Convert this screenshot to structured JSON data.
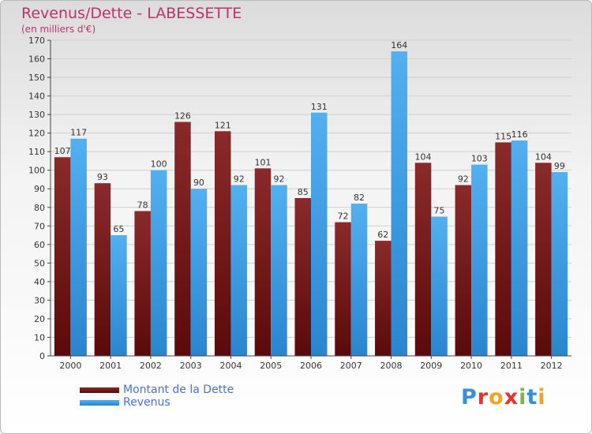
{
  "title": "Revenus/Dette - LABESSETTE",
  "subtitle": "(en milliers d'€)",
  "logo": {
    "letters": [
      "P",
      "r",
      "o",
      "x",
      "i",
      "t",
      "i"
    ],
    "colors": [
      "#3a8fd8",
      "#e8332a",
      "#f7a21b",
      "#e8332a",
      "#7ab648",
      "#3a8fd8",
      "#f7a21b"
    ]
  },
  "chart_data": {
    "type": "bar",
    "title": "Revenus/Dette - LABESSETTE",
    "subtitle": "(en milliers d'€)",
    "categories": [
      "2000",
      "2001",
      "2002",
      "2003",
      "2004",
      "2005",
      "2006",
      "2007",
      "2008",
      "2009",
      "2010",
      "2011",
      "2012"
    ],
    "series": [
      {
        "name": "Montant de la Dette",
        "color": "#7b1c1c",
        "values": [
          107,
          93,
          78,
          126,
          121,
          101,
          85,
          72,
          62,
          104,
          92,
          115,
          104
        ]
      },
      {
        "name": "Revenus",
        "color": "#3fa0e6",
        "values": [
          117,
          65,
          100,
          90,
          92,
          92,
          131,
          82,
          164,
          75,
          103,
          116,
          99
        ]
      }
    ],
    "ylim": [
      0,
      170
    ],
    "yticks": [
      0,
      10,
      20,
      30,
      40,
      50,
      60,
      70,
      80,
      90,
      100,
      110,
      120,
      130,
      140,
      150,
      160,
      170
    ],
    "grid": true,
    "legend": "bottom-left"
  }
}
